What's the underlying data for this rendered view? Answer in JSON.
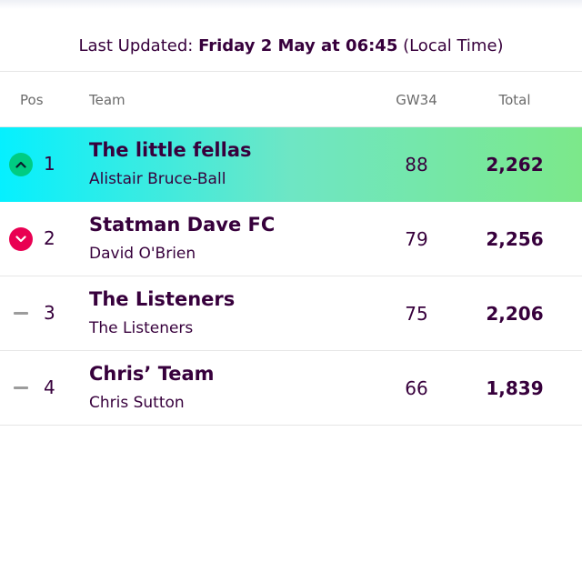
{
  "updated": {
    "prefix": "Last Updated: ",
    "datetime": "Friday 2 May at 06:45",
    "suffix": " (Local Time)"
  },
  "table": {
    "headers": {
      "pos": "Pos",
      "team": "Team",
      "gw": "GW34",
      "total": "Total"
    },
    "rows": [
      {
        "pos": "1",
        "movement": "up",
        "movement_icon": "chevron-up-icon",
        "team": "The little fellas",
        "manager": "Alistair Bruce-Ball",
        "gw": "88",
        "total": "2,262"
      },
      {
        "pos": "2",
        "movement": "down",
        "movement_icon": "chevron-down-icon",
        "team": "Statman Dave FC",
        "manager": "David O'Brien",
        "gw": "79",
        "total": "2,256"
      },
      {
        "pos": "3",
        "movement": "same",
        "movement_icon": "dash-icon",
        "team": "The Listeners",
        "manager": "The Listeners",
        "gw": "75",
        "total": "2,206"
      },
      {
        "pos": "4",
        "movement": "same",
        "movement_icon": "dash-icon",
        "team": "Chris’ Team",
        "manager": "Chris Sutton",
        "gw": "66",
        "total": "1,839"
      }
    ]
  },
  "colors": {
    "text": "#37003c",
    "up": "#00cc82",
    "down": "#e90052",
    "same": "#9c9c9c",
    "lead_gradient_start": "#05f0ff",
    "lead_gradient_end": "#7ce88a"
  }
}
